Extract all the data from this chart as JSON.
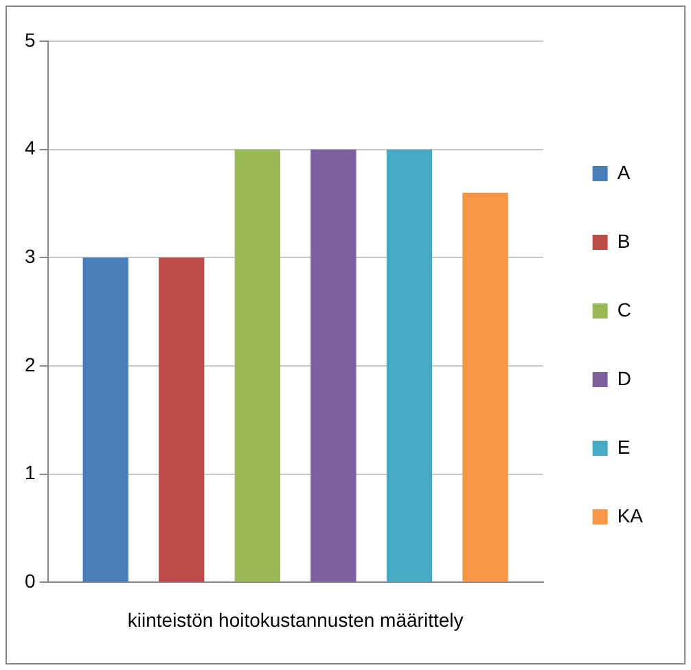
{
  "chart_data": {
    "type": "bar",
    "categories": [
      "kiinteistön hoitokustannusten määrittely"
    ],
    "series": [
      {
        "name": "A",
        "color": "#4a7ebb",
        "values": [
          3
        ]
      },
      {
        "name": "B",
        "color": "#be4b48",
        "values": [
          3
        ]
      },
      {
        "name": "C",
        "color": "#98b954",
        "values": [
          4
        ]
      },
      {
        "name": "D",
        "color": "#7d60a0",
        "values": [
          4
        ]
      },
      {
        "name": "E",
        "color": "#46aac5",
        "values": [
          4
        ]
      },
      {
        "name": "KA",
        "color": "#f79646",
        "values": [
          3.6
        ]
      }
    ],
    "ylim": [
      0,
      5
    ],
    "yticks": [
      0,
      1,
      2,
      3,
      4,
      5
    ],
    "grid": "y",
    "legend": "right"
  }
}
